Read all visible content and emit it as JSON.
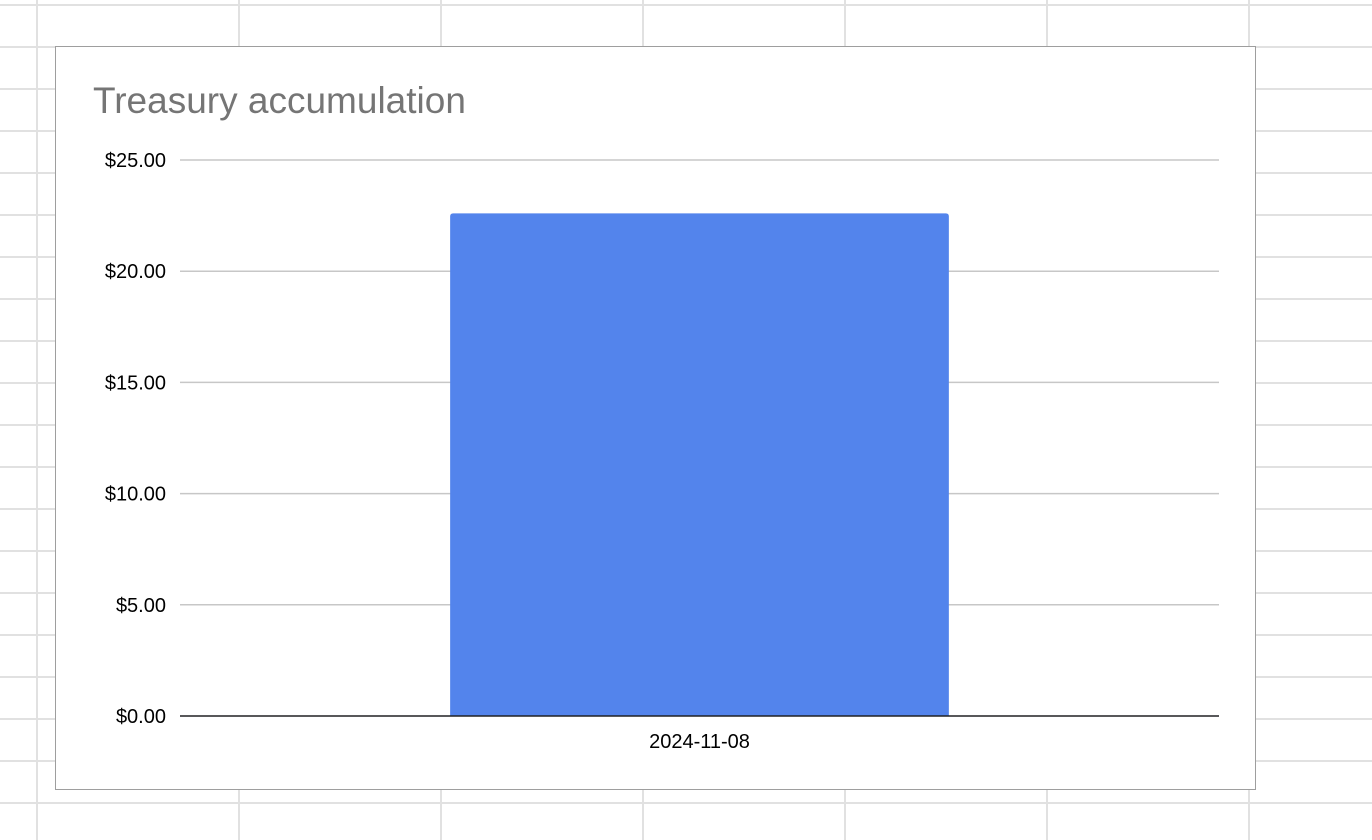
{
  "chart_data": {
    "type": "bar",
    "title": "Treasury accumulation",
    "xlabel": "",
    "ylabel": "",
    "categories": [
      "2024-11-08"
    ],
    "values": [
      22.6
    ],
    "ylim": [
      0,
      25
    ],
    "yticks": [
      0,
      5,
      10,
      15,
      20,
      25
    ],
    "ytick_labels": [
      "$0.00",
      "$5.00",
      "$10.00",
      "$15.00",
      "$20.00",
      "$25.00"
    ],
    "grid": true,
    "legend": "none",
    "colors": {
      "bar": "#5384ec",
      "gridline": "#c7c7c7",
      "axis": "#202124",
      "title": "#757575",
      "tick_text": "#000000"
    }
  }
}
